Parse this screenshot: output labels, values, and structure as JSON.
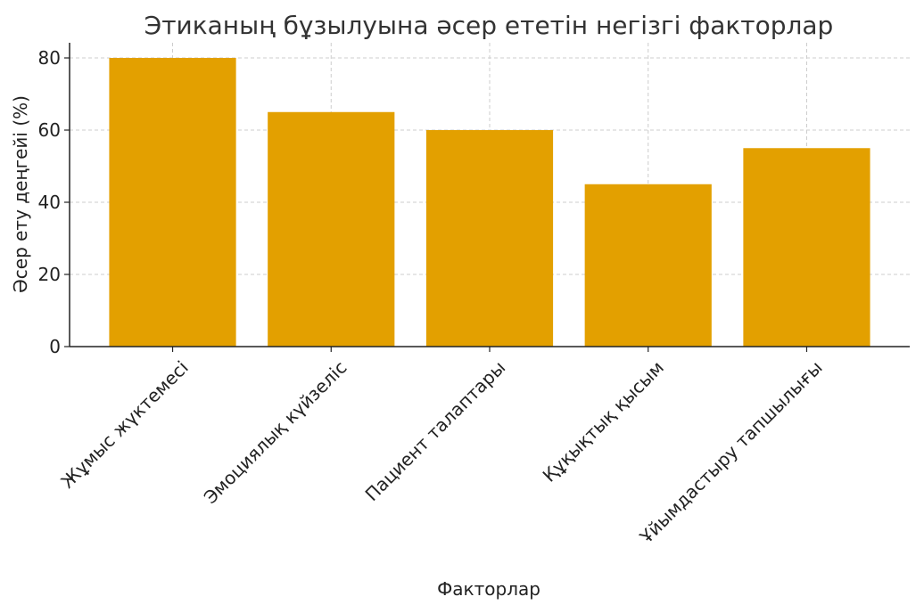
{
  "chart_data": {
    "type": "bar",
    "title": "Этиканың бұзылуына әсер ететін негізгі факторлар",
    "xlabel": "Факторлар",
    "ylabel": "Әсер ету деңгейі (%)",
    "categories": [
      "Жұмыс жүктемесі",
      "Эмоциялық күйзеліс",
      "Пациент талаптары",
      "Құқықтық қысым",
      "Ұйымдастыру тапшылығы"
    ],
    "values": [
      80,
      65,
      60,
      45,
      55
    ],
    "ylim": [
      0,
      80
    ],
    "yticks": [
      0,
      20,
      40,
      60,
      80
    ],
    "grid": true,
    "bar_color": "#E3A000"
  }
}
